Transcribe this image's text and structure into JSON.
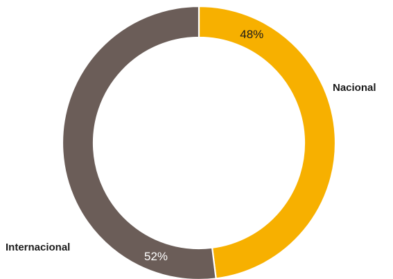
{
  "chart_data": {
    "type": "pie",
    "style": "donut",
    "title": "",
    "categories": [
      "Nacional",
      "Internacional"
    ],
    "values": [
      48,
      52
    ],
    "value_labels": [
      "48%",
      "52%"
    ],
    "colors": [
      "#F7B000",
      "#6B5D58"
    ],
    "label_colors": [
      "#1a1a1a",
      "#ffffff"
    ],
    "start_angle_deg": 0,
    "direction": "clockwise"
  }
}
